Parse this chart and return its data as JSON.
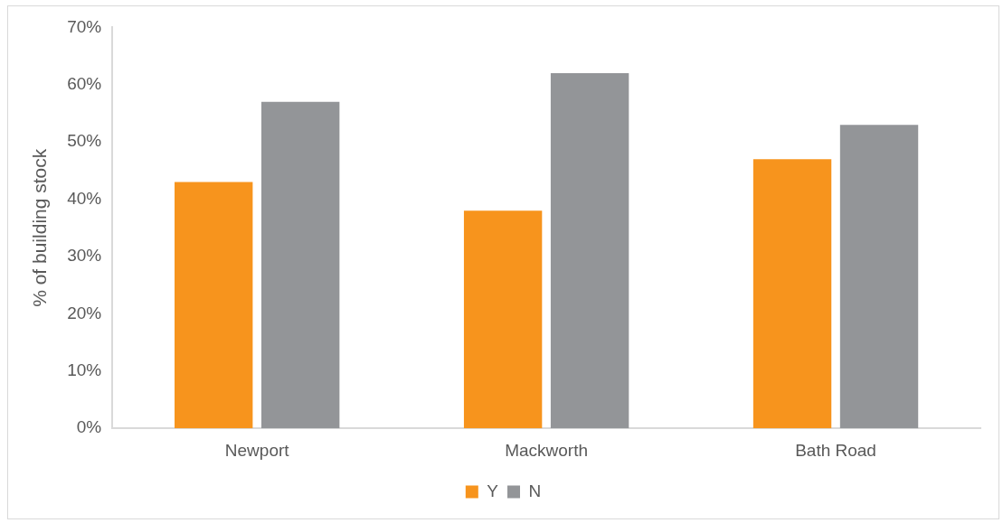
{
  "chart_data": {
    "type": "bar",
    "ylabel": "% of building stock",
    "categories": [
      "Newport",
      "Mackworth",
      "Bath Road"
    ],
    "series": [
      {
        "name": "Y",
        "color": "#f7941d",
        "values": [
          43,
          38,
          47
        ]
      },
      {
        "name": "N",
        "color": "#939598",
        "values": [
          57,
          62,
          53
        ]
      }
    ],
    "ylim": [
      0,
      70
    ],
    "yticks": [
      {
        "value": 0,
        "label": "0%"
      },
      {
        "value": 10,
        "label": "10%"
      },
      {
        "value": 20,
        "label": "20%"
      },
      {
        "value": 30,
        "label": "30%"
      },
      {
        "value": 40,
        "label": "40%"
      },
      {
        "value": 50,
        "label": "50%"
      },
      {
        "value": 60,
        "label": "60%"
      },
      {
        "value": 70,
        "label": "70%"
      }
    ],
    "legend": "bottom"
  }
}
